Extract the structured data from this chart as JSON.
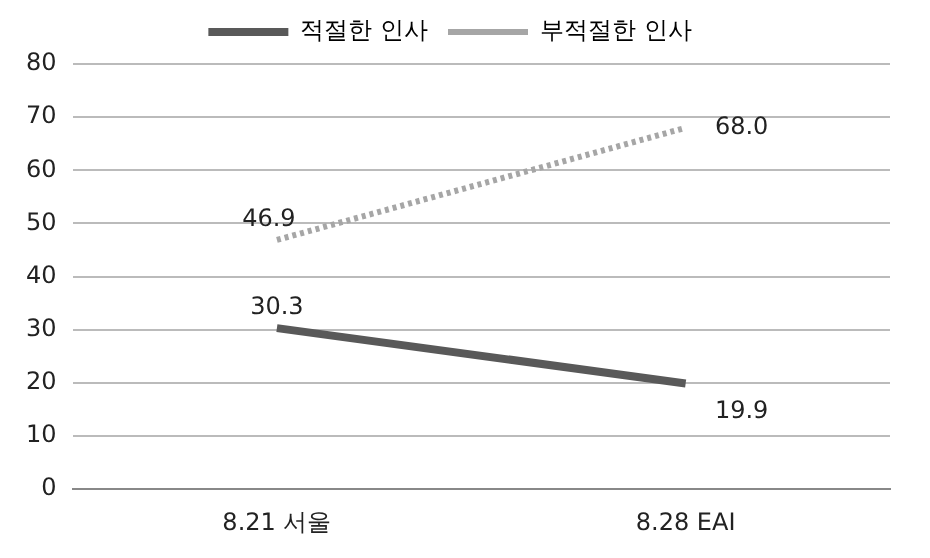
{
  "chart_data": {
    "type": "line",
    "categories": [
      "8.21 서울",
      "8.28 EAI"
    ],
    "series": [
      {
        "name": "적절한 인사",
        "color": "#595959",
        "values": [
          30.3,
          19.9
        ],
        "value_labels": [
          "30.3",
          "19.9"
        ],
        "line_style": "solid"
      },
      {
        "name": "부적절한 인사",
        "color": "#a6a6a6",
        "values": [
          46.9,
          68.0
        ],
        "value_labels": [
          "46.9",
          "68.0"
        ],
        "line_style": "dotted"
      }
    ],
    "ylim": [
      0,
      80
    ],
    "yticks": [
      0,
      10,
      20,
      30,
      40,
      50,
      60,
      70,
      80
    ],
    "grid": "y",
    "legend": "top",
    "marker": "none"
  }
}
